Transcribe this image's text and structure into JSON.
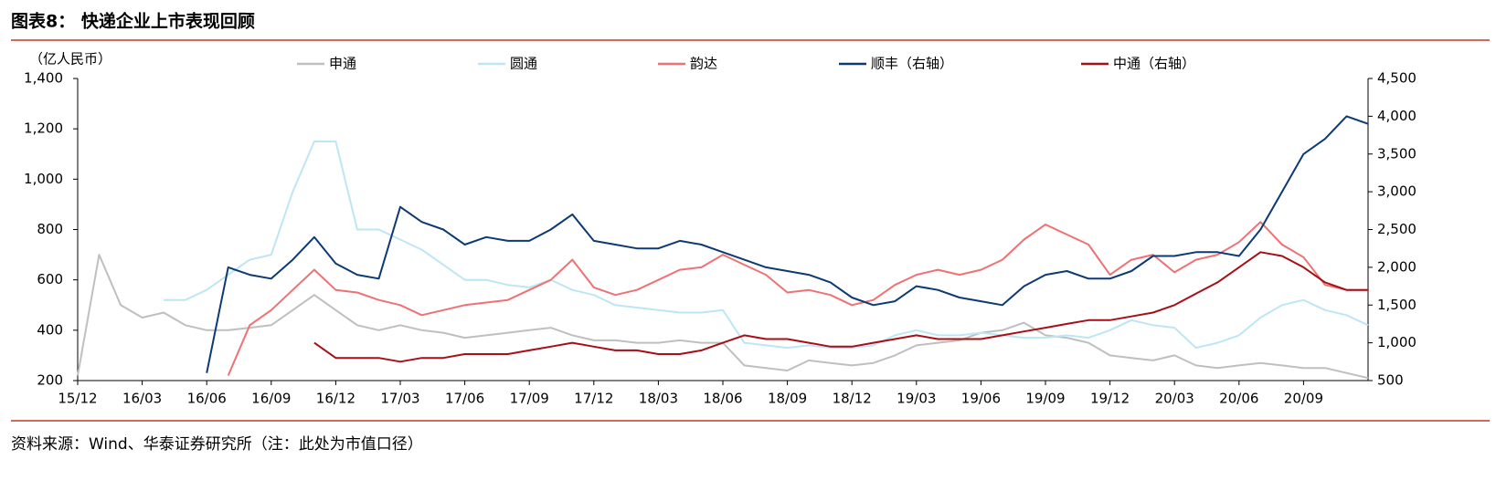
{
  "header": {
    "title": "图表8：  快递企业上市表现回顾"
  },
  "footer": {
    "source": "资料来源：Wind、华泰证券研究所（注：此处为市值口径）"
  },
  "chart_data": {
    "type": "line",
    "y_label": "（亿人民币）",
    "x": [
      "15/12",
      "16/01",
      "16/02",
      "16/03",
      "16/04",
      "16/05",
      "16/06",
      "16/07",
      "16/08",
      "16/09",
      "16/10",
      "16/11",
      "16/12",
      "17/01",
      "17/02",
      "17/03",
      "17/04",
      "17/05",
      "17/06",
      "17/07",
      "17/08",
      "17/09",
      "17/10",
      "17/11",
      "17/12",
      "18/01",
      "18/02",
      "18/03",
      "18/04",
      "18/05",
      "18/06",
      "18/07",
      "18/08",
      "18/09",
      "18/10",
      "18/11",
      "18/12",
      "19/01",
      "19/02",
      "19/03",
      "19/04",
      "19/05",
      "19/06",
      "19/07",
      "19/08",
      "19/09",
      "19/10",
      "19/11",
      "19/12",
      "20/01",
      "20/02",
      "20/03",
      "20/04",
      "20/05",
      "20/06",
      "20/07",
      "20/08",
      "20/09",
      "20/10",
      "20/11",
      "20/12"
    ],
    "xticks": [
      "15/12",
      "16/03",
      "16/06",
      "16/09",
      "16/12",
      "17/03",
      "17/06",
      "17/09",
      "17/12",
      "18/03",
      "18/06",
      "18/09",
      "18/12",
      "19/03",
      "19/06",
      "19/09",
      "19/12",
      "20/03",
      "20/06",
      "20/09"
    ],
    "ylim": [
      200,
      1400
    ],
    "yticks": [
      200,
      400,
      600,
      800,
      {
        "value": 1000,
        "label": "1,000"
      },
      {
        "value": 1200,
        "label": "1,200"
      },
      {
        "value": 1400,
        "label": "1,400"
      }
    ],
    "y2lim": [
      500,
      4500
    ],
    "y2ticks": [
      500,
      {
        "value": 1000,
        "label": "1,000"
      },
      {
        "value": 1500,
        "label": "1,500"
      },
      {
        "value": 2000,
        "label": "2,000"
      },
      {
        "value": 2500,
        "label": "2,500"
      },
      {
        "value": 3000,
        "label": "3,000"
      },
      {
        "value": 3500,
        "label": "3,500"
      },
      {
        "value": 4000,
        "label": "4,000"
      },
      {
        "value": 4500,
        "label": "4,500"
      }
    ],
    "grid": false,
    "series": [
      {
        "name": "申通",
        "color": "#bfbfbf",
        "values": [
          220,
          700,
          500,
          450,
          470,
          420,
          400,
          400,
          410,
          420,
          480,
          540,
          480,
          420,
          400,
          420,
          400,
          390,
          370,
          380,
          390,
          400,
          410,
          380,
          360,
          360,
          350,
          350,
          360,
          350,
          350,
          260,
          250,
          240,
          280,
          270,
          260,
          270,
          300,
          340,
          350,
          360,
          390,
          400,
          430,
          380,
          370,
          350,
          300,
          290,
          280,
          300,
          260,
          250,
          260,
          270,
          260,
          250,
          250,
          230,
          210
        ]
      },
      {
        "name": "圆通",
        "color": "#bde6f5",
        "values": [
          null,
          null,
          null,
          null,
          520,
          520,
          560,
          620,
          680,
          700,
          950,
          1150,
          1150,
          800,
          800,
          760,
          720,
          660,
          600,
          600,
          580,
          570,
          600,
          560,
          540,
          500,
          490,
          480,
          470,
          470,
          480,
          350,
          340,
          330,
          340,
          330,
          330,
          340,
          380,
          400,
          380,
          380,
          390,
          380,
          370,
          370,
          380,
          370,
          400,
          440,
          420,
          410,
          330,
          350,
          380,
          450,
          500,
          520,
          480,
          460,
          420
        ]
      },
      {
        "name": "韵达",
        "color": "#ef7173",
        "values": [
          null,
          null,
          null,
          null,
          null,
          null,
          null,
          220,
          420,
          480,
          560,
          640,
          560,
          550,
          520,
          500,
          460,
          480,
          500,
          510,
          520,
          560,
          600,
          680,
          570,
          540,
          560,
          600,
          640,
          650,
          700,
          660,
          620,
          550,
          560,
          540,
          500,
          520,
          580,
          620,
          640,
          620,
          640,
          680,
          760,
          820,
          780,
          740,
          620,
          680,
          700,
          630,
          680,
          700,
          750,
          830,
          740,
          690,
          580,
          560,
          560
        ]
      },
      {
        "name": "顺丰（右轴）",
        "color": "#0d3a73",
        "axis": "y2",
        "values": [
          null,
          null,
          null,
          null,
          null,
          null,
          600,
          2000,
          1900,
          1850,
          2100,
          2400,
          2050,
          1900,
          1850,
          2800,
          2600,
          2500,
          2300,
          2400,
          2350,
          2350,
          2500,
          2700,
          2350,
          2300,
          2250,
          2250,
          2350,
          2300,
          2200,
          2100,
          2000,
          1950,
          1900,
          1800,
          1600,
          1500,
          1550,
          1750,
          1700,
          1600,
          1550,
          1500,
          1750,
          1900,
          1950,
          1850,
          1850,
          1950,
          2150,
          2150,
          2200,
          2200,
          2150,
          2500,
          3000,
          3500,
          3700,
          4000,
          3900
        ]
      },
      {
        "name": "中通（右轴）",
        "color": "#a50f15",
        "axis": "y2",
        "values": [
          null,
          null,
          null,
          null,
          null,
          null,
          null,
          null,
          null,
          null,
          null,
          1000,
          800,
          800,
          800,
          750,
          800,
          800,
          850,
          850,
          850,
          900,
          950,
          1000,
          950,
          900,
          900,
          850,
          850,
          900,
          1000,
          1100,
          1050,
          1050,
          1000,
          950,
          950,
          1000,
          1050,
          1100,
          1050,
          1050,
          1050,
          1100,
          1150,
          1200,
          1250,
          1300,
          1300,
          1350,
          1400,
          1500,
          1650,
          1800,
          2000,
          2200,
          2150,
          2000,
          1800,
          1700,
          1700
        ]
      }
    ]
  }
}
